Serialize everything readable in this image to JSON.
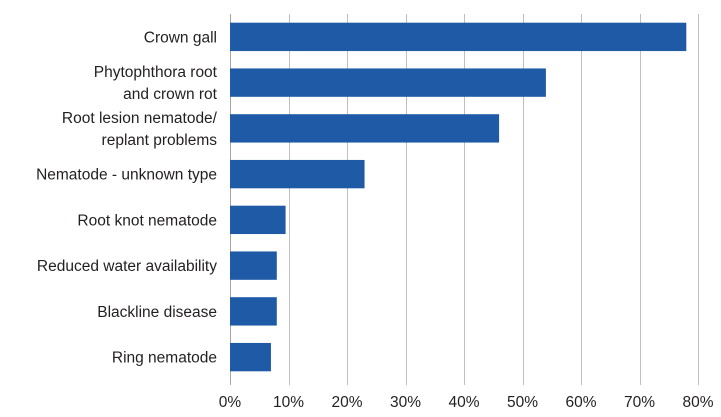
{
  "chart_data": {
    "type": "bar",
    "orientation": "horizontal",
    "categories": [
      [
        "Crown gall"
      ],
      [
        "Phytophthora root",
        "and crown rot"
      ],
      [
        "Root lesion nematode/",
        "replant problems"
      ],
      [
        "Nematode - unknown type"
      ],
      [
        "Root knot nematode"
      ],
      [
        "Reduced water availability"
      ],
      [
        "Blackline disease"
      ],
      [
        "Ring nematode"
      ]
    ],
    "values": [
      78,
      54,
      46,
      23,
      9.5,
      8,
      8,
      7
    ],
    "xlim": [
      0,
      80
    ],
    "xticks": [
      "0%",
      "10%",
      "20%",
      "30%",
      "40%",
      "50%",
      "60%",
      "70%",
      "80%"
    ],
    "grid": true,
    "bar_color": "#1f5aa6"
  }
}
